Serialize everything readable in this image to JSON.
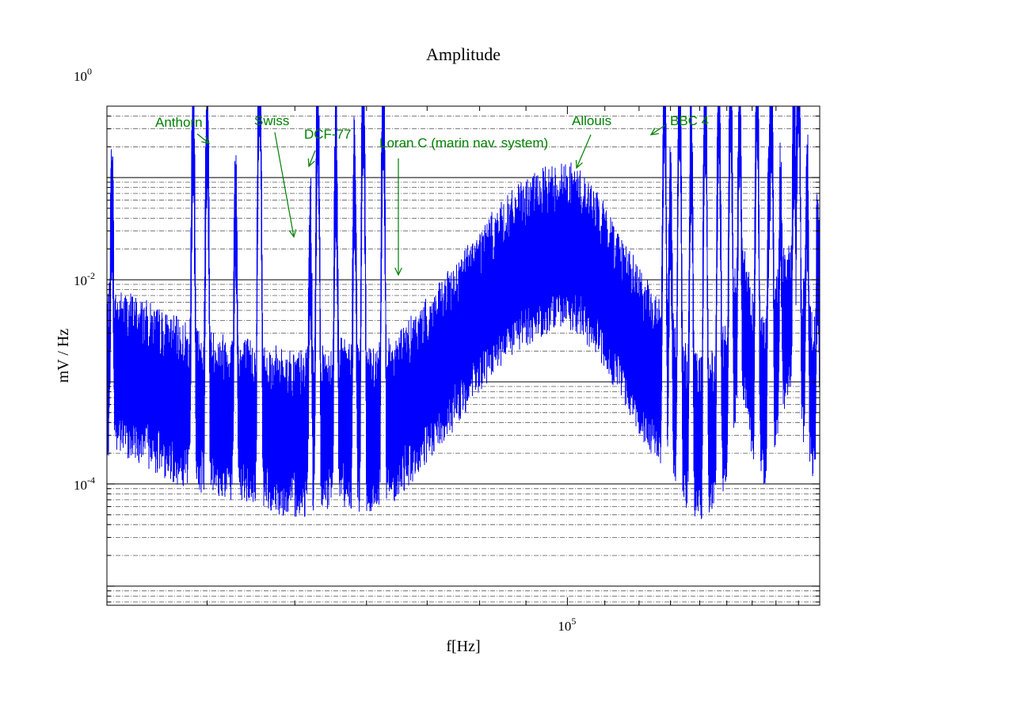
{
  "chart_data": {
    "type": "line",
    "title": "Amplitude",
    "xlabel": "f[Hz]",
    "ylabel": "mV / Hz",
    "x_scale": "log",
    "y_scale": "log",
    "xlim": [
      31000,
      190000
    ],
    "ylim": [
      6.5e-06,
      0.5
    ],
    "grid": "major and minor on y-axis",
    "x_tick_labels": [
      {
        "base": "10",
        "exp": "5",
        "value": 100000
      }
    ],
    "y_tick_labels": [
      {
        "base": "10",
        "exp": "0",
        "value": 1
      },
      {
        "base": "10",
        "exp": "-2",
        "value": 0.01
      },
      {
        "base": "10",
        "exp": "-4",
        "value": 0.0001
      }
    ],
    "series": [
      {
        "color": "#0000ff",
        "baseline": [
          [
            31000,
            0.0012
          ],
          [
            33000,
            0.0011
          ],
          [
            36000,
            0.0007
          ],
          [
            39000,
            0.0005
          ],
          [
            44000,
            0.0004
          ],
          [
            49000,
            0.0003
          ],
          [
            53000,
            0.0003
          ],
          [
            56000,
            0.0004
          ],
          [
            60000,
            0.0003
          ],
          [
            64000,
            0.0004
          ],
          [
            68000,
            0.0007
          ],
          [
            73000,
            0.0015
          ],
          [
            78000,
            0.0035
          ],
          [
            83000,
            0.007
          ],
          [
            88000,
            0.012
          ],
          [
            93000,
            0.017
          ],
          [
            97000,
            0.02
          ],
          [
            100000,
            0.021
          ],
          [
            103000,
            0.018
          ],
          [
            107000,
            0.012
          ],
          [
            112000,
            0.006
          ],
          [
            117000,
            0.003
          ],
          [
            122000,
            0.0015
          ],
          [
            128000,
            0.0008
          ],
          [
            134000,
            0.0004
          ],
          [
            140000,
            0.00025
          ],
          [
            146000,
            0.0003
          ],
          [
            150000,
            0.0007
          ],
          [
            154000,
            0.003
          ],
          [
            157000,
            0.003
          ],
          [
            161000,
            0.0008
          ],
          [
            165000,
            0.0006
          ],
          [
            168000,
            0.0009
          ],
          [
            171000,
            0.002
          ],
          [
            175000,
            0.004
          ],
          [
            180000,
            0.0025
          ],
          [
            184000,
            0.001
          ],
          [
            188000,
            0.0006
          ],
          [
            190000,
            0.0006
          ]
        ],
        "peaks": [
          [
            31400,
            0.06
          ],
          [
            38600,
            0.3
          ],
          [
            40000,
            0.35
          ],
          [
            43000,
            0.05
          ],
          [
            45700,
            1.5
          ],
          [
            52000,
            0.02
          ],
          [
            53000,
            0.4
          ],
          [
            55500,
            0.15
          ],
          [
            58200,
            0.1
          ],
          [
            59500,
            0.6
          ],
          [
            62600,
            0.6
          ],
          [
            128000,
            0.6
          ],
          [
            130000,
            0.05
          ],
          [
            133000,
            0.6
          ],
          [
            137000,
            0.2
          ],
          [
            142000,
            0.6
          ],
          [
            147000,
            0.6
          ],
          [
            151500,
            0.6
          ],
          [
            155000,
            0.5
          ],
          [
            162000,
            0.6
          ],
          [
            167000,
            0.05
          ],
          [
            168000,
            0.6
          ],
          [
            172000,
            0.04
          ],
          [
            178000,
            0.3
          ],
          [
            180000,
            1.8
          ],
          [
            184000,
            0.06
          ],
          [
            189000,
            0.02
          ]
        ]
      }
    ],
    "annotations": [
      {
        "text": "Anthorn",
        "x": 45700,
        "y": 1.5
      },
      {
        "text": "Swiss",
        "x": 55500,
        "y": 0.11
      },
      {
        "text": "DCF-77",
        "x": 59500,
        "y": 0.7
      },
      {
        "text": "Loran C (marin nav. system)",
        "x": 100000,
        "y": 0.04
      },
      {
        "text": "Allouis",
        "x": 162000,
        "y": 0.75
      },
      {
        "text": "BBC 4",
        "x": 198000,
        "y": 1.5
      }
    ]
  }
}
